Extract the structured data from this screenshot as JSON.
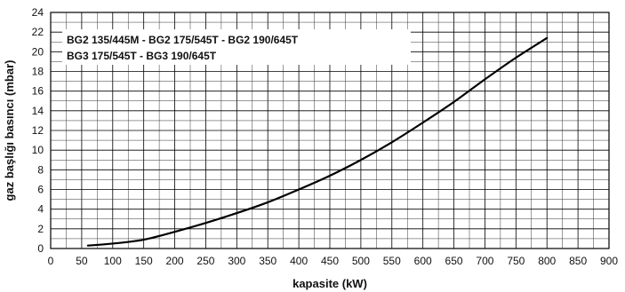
{
  "chart_data": {
    "type": "line",
    "xlabel": "kapasite (kW)",
    "ylabel": "gaz başlığı basıncı (mbar)",
    "xlim": [
      0,
      900
    ],
    "ylim": [
      0,
      24
    ],
    "x_ticks": [
      0,
      50,
      100,
      150,
      200,
      250,
      300,
      350,
      400,
      450,
      500,
      550,
      600,
      650,
      700,
      750,
      800,
      850,
      900
    ],
    "y_ticks": [
      0,
      2,
      4,
      6,
      8,
      10,
      12,
      14,
      16,
      18,
      20,
      22,
      24
    ],
    "grid": true,
    "annotation_lines": [
      "BG2 135/445M - BG2 175/545T - BG2 190/645T",
      "BG3 175/545T - BG3 190/645T"
    ],
    "series": [
      {
        "color": "#000000",
        "x": [
          60,
          100,
          150,
          200,
          250,
          300,
          350,
          400,
          450,
          500,
          550,
          600,
          650,
          700,
          750,
          800
        ],
        "y": [
          0.3,
          0.5,
          0.9,
          1.7,
          2.6,
          3.6,
          4.7,
          6.0,
          7.4,
          9.0,
          10.8,
          12.8,
          14.9,
          17.2,
          19.4,
          21.4
        ]
      }
    ]
  }
}
